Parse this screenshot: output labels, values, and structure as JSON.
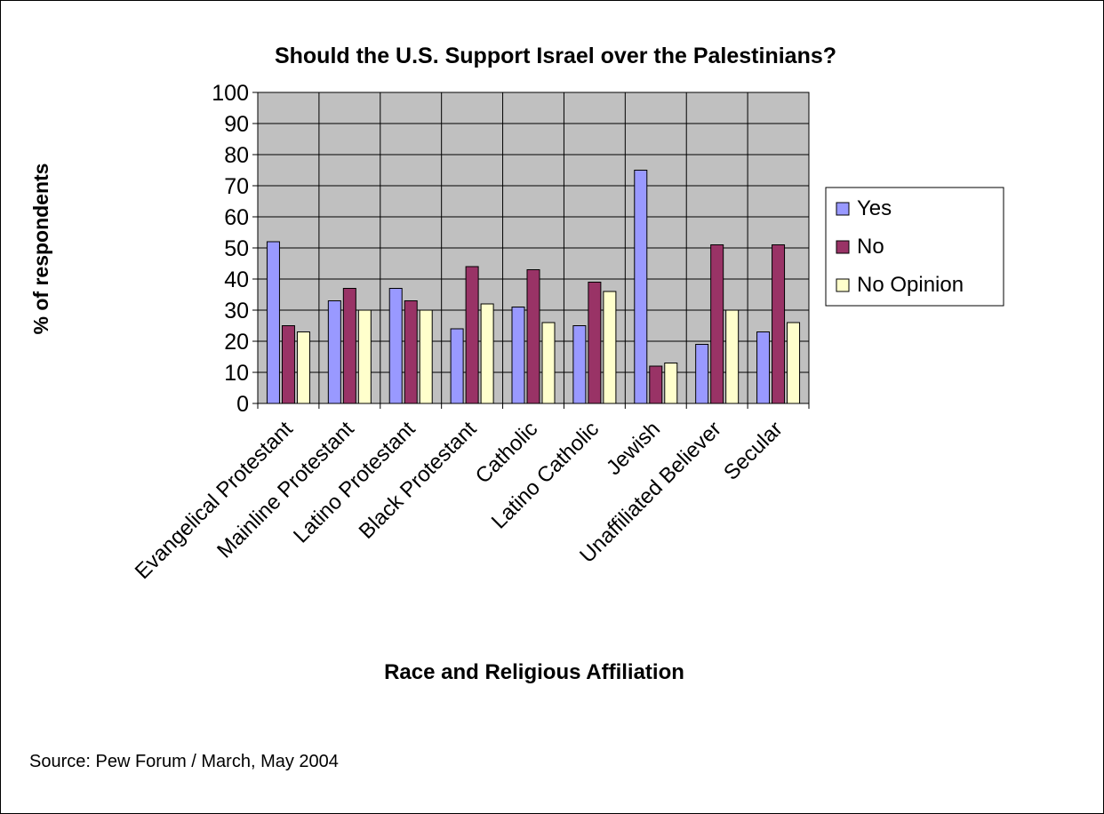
{
  "chart_data": {
    "type": "bar",
    "title": "Should the U.S. Support Israel over the Palestinians?",
    "xlabel": "Race and Religious Affiliation",
    "ylabel": "% of respondents",
    "ylim": [
      0,
      100
    ],
    "yticks": [
      0,
      10,
      20,
      30,
      40,
      50,
      60,
      70,
      80,
      90,
      100
    ],
    "grid": true,
    "legend_position": "right",
    "categories": [
      "Evangelical Protestant",
      "Mainline Protestant",
      "Latino Protestant",
      "Black Protestant",
      "Catholic",
      "Latino Catholic",
      "Jewish",
      "Unaffiliated Believer",
      "Secular"
    ],
    "series": [
      {
        "name": "Yes",
        "color": "#9999ff",
        "values": [
          52,
          33,
          37,
          24,
          31,
          25,
          75,
          19,
          23
        ]
      },
      {
        "name": "No",
        "color": "#993366",
        "values": [
          25,
          37,
          33,
          44,
          43,
          39,
          12,
          51,
          51
        ]
      },
      {
        "name": "No Opinion",
        "color": "#ffffcc",
        "values": [
          23,
          30,
          30,
          32,
          26,
          36,
          13,
          30,
          26
        ]
      }
    ],
    "source": "Source: Pew Forum / March, May 2004"
  },
  "colors": {
    "plot_background": "#c0c0c0",
    "gridline": "#000000"
  }
}
